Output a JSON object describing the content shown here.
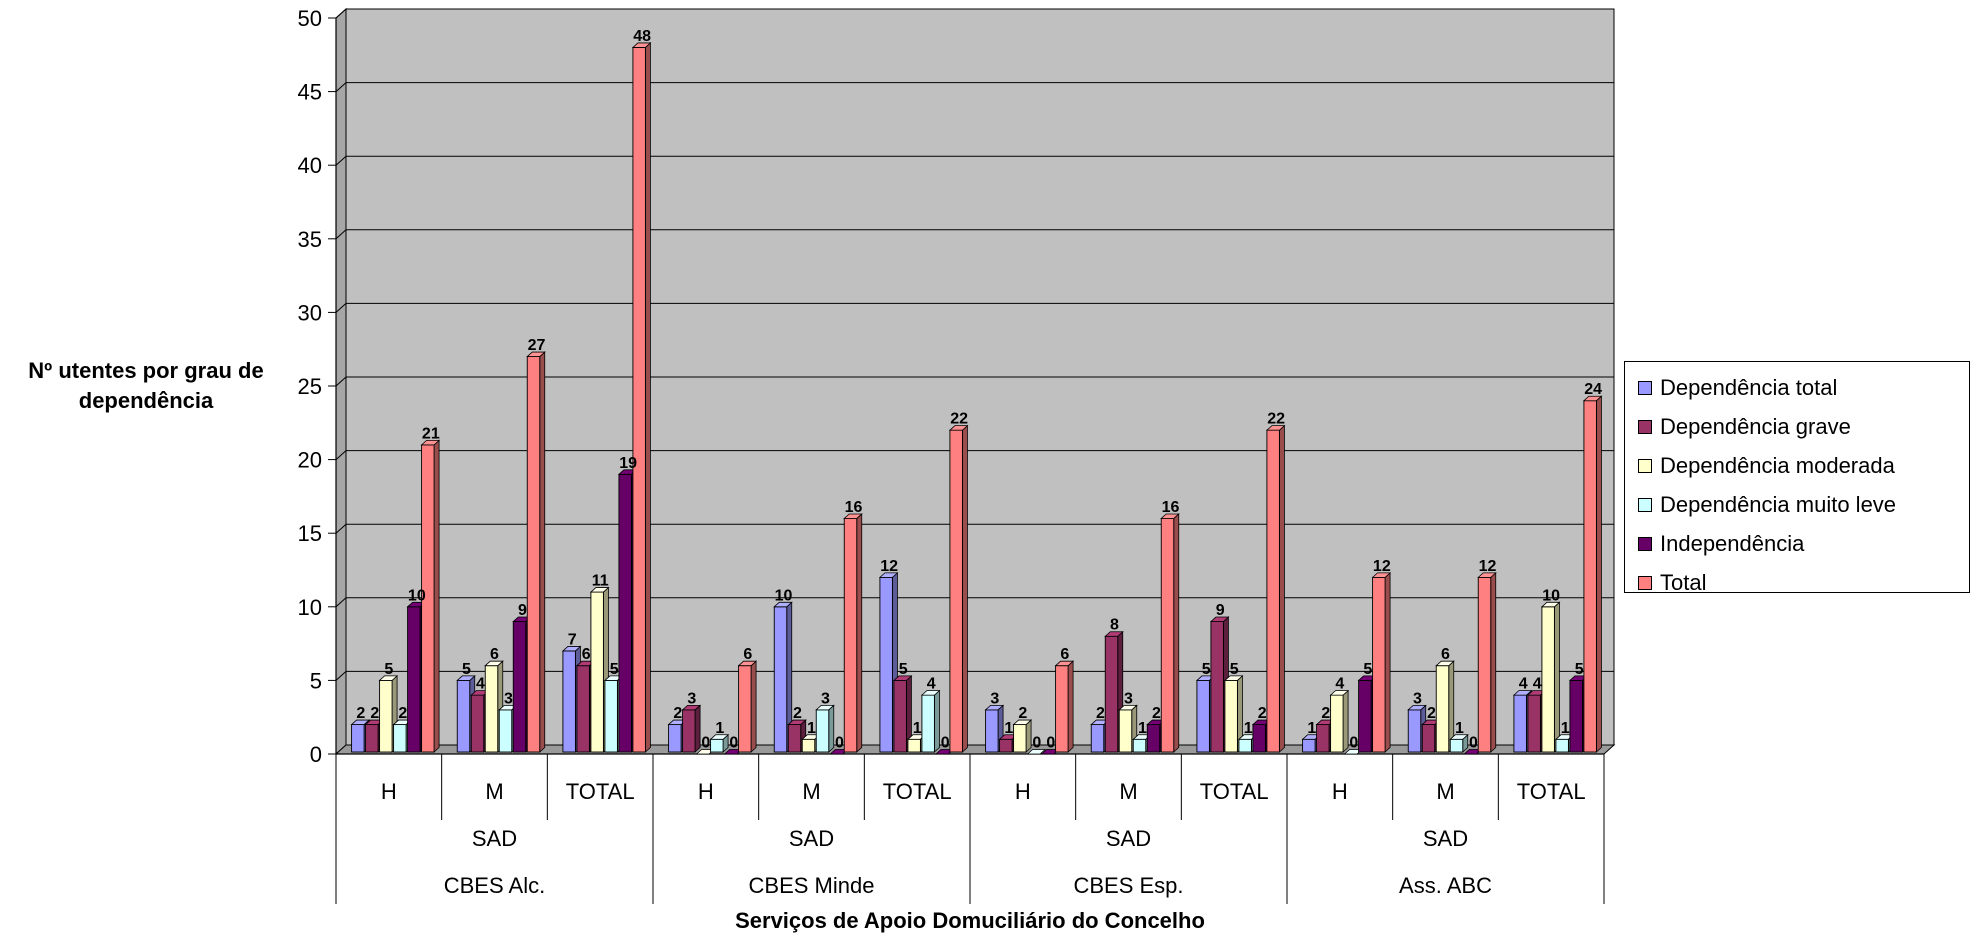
{
  "chart_data": {
    "type": "bar",
    "title": "",
    "ylabel": "Nº utentes por grau de dependência",
    "xlabel": "Serviços de Apoio Domuciliário do Concelho",
    "ylim": [
      0,
      50
    ],
    "ytick_step": 5,
    "yticks": [
      "0",
      "5",
      "10",
      "15",
      "20",
      "25",
      "30",
      "35",
      "40",
      "45",
      "50"
    ],
    "grid": true,
    "legend_position": "right",
    "categories": [
      "H",
      "M",
      "TOTAL",
      "H",
      "M",
      "TOTAL",
      "H",
      "M",
      "TOTAL",
      "H",
      "M",
      "TOTAL"
    ],
    "category_groups": [
      {
        "service": "SAD",
        "institution": "CBES Alc.",
        "span": 3
      },
      {
        "service": "SAD",
        "institution": "CBES Minde",
        "span": 3
      },
      {
        "service": "SAD",
        "institution": "CBES Esp.",
        "span": 3
      },
      {
        "service": "SAD",
        "institution": "Ass. ABC",
        "span": 3
      }
    ],
    "series": [
      {
        "name": "Dependência total",
        "color": "#9999ff",
        "values": [
          2,
          5,
          7,
          2,
          10,
          12,
          3,
          2,
          5,
          1,
          3,
          4
        ]
      },
      {
        "name": "Dependência grave",
        "color": "#993366",
        "values": [
          2,
          4,
          6,
          3,
          2,
          5,
          1,
          8,
          9,
          2,
          2,
          4
        ]
      },
      {
        "name": "Dependência moderada",
        "color": "#ffffcc",
        "values": [
          5,
          6,
          11,
          0,
          1,
          1,
          2,
          3,
          5,
          4,
          6,
          10
        ]
      },
      {
        "name": "Dependência muito leve",
        "color": "#ccffff",
        "values": [
          2,
          3,
          5,
          1,
          3,
          4,
          0,
          1,
          1,
          0,
          1,
          1
        ]
      },
      {
        "name": "Independência",
        "color": "#660066",
        "values": [
          10,
          9,
          19,
          0,
          0,
          0,
          0,
          2,
          2,
          5,
          0,
          5
        ]
      },
      {
        "name": "Total",
        "color": "#ff8080",
        "values": [
          21,
          27,
          48,
          6,
          16,
          22,
          6,
          16,
          22,
          12,
          12,
          24
        ]
      }
    ]
  }
}
